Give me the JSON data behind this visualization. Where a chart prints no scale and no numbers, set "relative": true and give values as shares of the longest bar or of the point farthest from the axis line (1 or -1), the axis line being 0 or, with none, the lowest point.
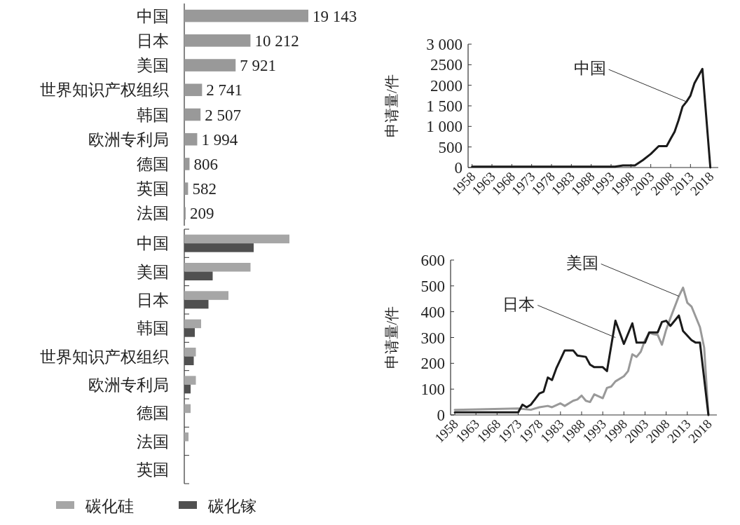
{
  "chart_data": [
    {
      "type": "bar",
      "orientation": "horizontal",
      "categories": [
        "中国",
        "日本",
        "美国",
        "世界知识产权组织",
        "韩国",
        "欧洲专利局",
        "德国",
        "英国",
        "法国"
      ],
      "values": [
        19143,
        10212,
        7921,
        2741,
        2507,
        1994,
        806,
        582,
        209
      ],
      "value_labels": [
        "19 143",
        "10 212",
        "7 921",
        "2 741",
        "2 507",
        "1 994",
        "806",
        "582",
        "209"
      ],
      "color": "#999999"
    },
    {
      "type": "bar",
      "orientation": "horizontal",
      "relative": true,
      "categories": [
        "中国",
        "美国",
        "日本",
        "韩国",
        "世界知识产权组织",
        "欧洲专利局",
        "德国",
        "法国",
        "英国"
      ],
      "legend": "bottom",
      "series": [
        {
          "name": "碳化硅",
          "color": "#a6a6a6",
          "values": [
            1,
            0.63,
            0.42,
            0.16,
            0.11,
            0.11,
            0.06,
            0.04,
            0
          ]
        },
        {
          "name": "碳化镓",
          "color": "#505050",
          "values": [
            0.66,
            0.27,
            0.23,
            0.1,
            0.09,
            0.06,
            0,
            0,
            0
          ]
        }
      ]
    },
    {
      "type": "line",
      "ylabel": "申请量/件",
      "xlim": [
        1957,
        2020
      ],
      "ylim": [
        0,
        3000
      ],
      "xticks": [
        1958,
        1963,
        1968,
        1973,
        1978,
        1983,
        1988,
        1993,
        1998,
        2003,
        2008,
        2013,
        2018
      ],
      "yticks": [
        0,
        500,
        {
          "value": 1000,
          "label": "1 000"
        },
        {
          "value": 1500,
          "label": "1 500"
        },
        2000,
        2500,
        {
          "value": 3000,
          "label": "3 000"
        }
      ],
      "annotations": [
        {
          "text": "中国",
          "x": 2012,
          "y": 1600
        }
      ],
      "series": [
        {
          "color": "#1a1a1a",
          "x": [
            1958,
            1994,
            1996,
            1999,
            2001,
            2003,
            2005,
            2007,
            2008,
            2009,
            2010,
            2011,
            2012,
            2013,
            2014,
            2016,
            2018
          ],
          "values": [
            20,
            20,
            50,
            50,
            180,
            330,
            520,
            520,
            700,
            870,
            1150,
            1480,
            1600,
            1750,
            2050,
            2400,
            0
          ]
        }
      ]
    },
    {
      "type": "line",
      "ylabel": "申请量/件",
      "xlim": [
        1957,
        2020
      ],
      "ylim": [
        0,
        600
      ],
      "xticks": [
        1958,
        1963,
        1968,
        1973,
        1978,
        1983,
        1988,
        1993,
        1998,
        2003,
        2008,
        2013,
        2018
      ],
      "yticks": [
        0,
        100,
        200,
        300,
        400,
        500,
        600
      ],
      "annotations": [
        {
          "text": "美国",
          "x": 2011,
          "y": 460
        },
        {
          "text": "日本",
          "x": 1996,
          "y": 300
        }
      ],
      "series": [
        {
          "color": "#999999",
          "x": [
            1958,
            1973,
            1976,
            1978,
            1980,
            1981,
            1983,
            1984,
            1986,
            1987,
            1988,
            1989,
            1990,
            1991,
            1993,
            1994,
            1995,
            1996,
            1998,
            1999,
            2000,
            2001,
            2002,
            2003,
            2004,
            2005,
            2006,
            2007,
            2008,
            2009,
            2011,
            2012,
            2013,
            2014,
            2016,
            2017,
            2018
          ],
          "values": [
            20,
            25,
            20,
            30,
            35,
            30,
            45,
            35,
            55,
            60,
            75,
            55,
            50,
            80,
            65,
            105,
            110,
            130,
            150,
            170,
            235,
            225,
            245,
            290,
            318,
            313,
            310,
            272,
            330,
            375,
            460,
            493,
            435,
            420,
            340,
            260,
            0
          ]
        },
        {
          "color": "#1a1a1a",
          "x": [
            1958,
            1973,
            1974,
            1975,
            1976,
            1978,
            1979,
            1980,
            1981,
            1982,
            1984,
            1986,
            1987,
            1989,
            1990,
            1991,
            1993,
            1994,
            1996,
            1998,
            2000,
            2001,
            2003,
            2004,
            2006,
            2007,
            2008,
            2009,
            2011,
            2012,
            2014,
            2015,
            2016,
            2018
          ],
          "values": [
            10,
            10,
            40,
            30,
            40,
            83,
            90,
            145,
            135,
            180,
            250,
            250,
            230,
            225,
            195,
            185,
            185,
            170,
            365,
            275,
            355,
            280,
            280,
            320,
            320,
            360,
            365,
            345,
            385,
            325,
            290,
            280,
            280,
            0
          ]
        }
      ]
    }
  ]
}
